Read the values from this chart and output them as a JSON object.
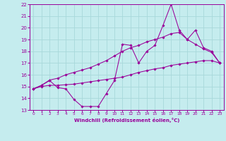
{
  "title": "",
  "xlabel": "Windchill (Refroidissement éolien,°C)",
  "background_color": "#c5ecee",
  "grid_color": "#a8d8da",
  "line_color": "#990099",
  "x": [
    0,
    1,
    2,
    3,
    4,
    5,
    6,
    7,
    8,
    9,
    10,
    11,
    12,
    13,
    14,
    15,
    16,
    17,
    18,
    19,
    20,
    21,
    22,
    23
  ],
  "y_main": [
    14.8,
    15.1,
    15.5,
    14.9,
    14.8,
    13.9,
    13.3,
    13.3,
    13.3,
    14.4,
    15.5,
    18.6,
    18.5,
    17.0,
    18.0,
    18.5,
    20.2,
    22.0,
    19.8,
    19.0,
    19.8,
    18.3,
    18.0,
    17.0
  ],
  "y_upper": [
    14.8,
    15.1,
    15.55,
    15.7,
    16.0,
    16.2,
    16.4,
    16.6,
    16.9,
    17.2,
    17.6,
    18.0,
    18.3,
    18.5,
    18.8,
    19.0,
    19.2,
    19.5,
    19.6,
    19.0,
    18.6,
    18.2,
    17.9,
    17.0
  ],
  "y_lower": [
    14.8,
    15.0,
    15.1,
    15.1,
    15.15,
    15.2,
    15.3,
    15.4,
    15.5,
    15.6,
    15.7,
    15.8,
    16.0,
    16.2,
    16.35,
    16.5,
    16.6,
    16.8,
    16.9,
    17.0,
    17.1,
    17.2,
    17.2,
    17.0
  ],
  "xlim": [
    -0.5,
    23.5
  ],
  "ylim": [
    13,
    22
  ],
  "xticks": [
    0,
    1,
    2,
    3,
    4,
    5,
    6,
    7,
    8,
    9,
    10,
    11,
    12,
    13,
    14,
    15,
    16,
    17,
    18,
    19,
    20,
    21,
    22,
    23
  ],
  "yticks": [
    13,
    14,
    15,
    16,
    17,
    18,
    19,
    20,
    21,
    22
  ]
}
